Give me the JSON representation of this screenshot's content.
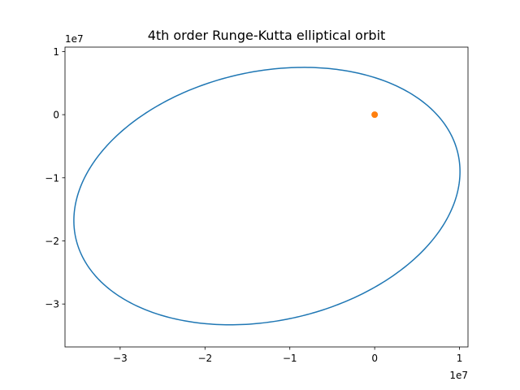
{
  "chart_data": {
    "type": "line",
    "title": "4th order Runge-Kutta elliptical orbit",
    "xlabel": "",
    "ylabel": "",
    "xlim": [
      -36500000,
      11000000
    ],
    "ylim": [
      -36800000,
      10700000
    ],
    "x_ticks": [
      -30000000,
      -20000000,
      -10000000,
      0,
      10000000
    ],
    "x_tick_labels": [
      "−3",
      "−2",
      "−1",
      "0",
      "1"
    ],
    "y_ticks": [
      -30000000,
      -20000000,
      -10000000,
      0,
      10000000
    ],
    "y_tick_labels": [
      "−3",
      "−2",
      "−1",
      "0",
      "1"
    ],
    "x_offset_label": "1e7",
    "y_offset_label": "1e7",
    "grid": false,
    "series": [
      {
        "type": "ellipse-orbit",
        "color": "#1f77b4",
        "center": [
          -12700000,
          -12900000
        ],
        "semi_major": 23850000,
        "semi_minor": 19100000,
        "rotation_deg": 30
      },
      {
        "type": "scatter",
        "color": "#ff7f0e",
        "points": [
          [
            0,
            0
          ]
        ]
      }
    ]
  }
}
